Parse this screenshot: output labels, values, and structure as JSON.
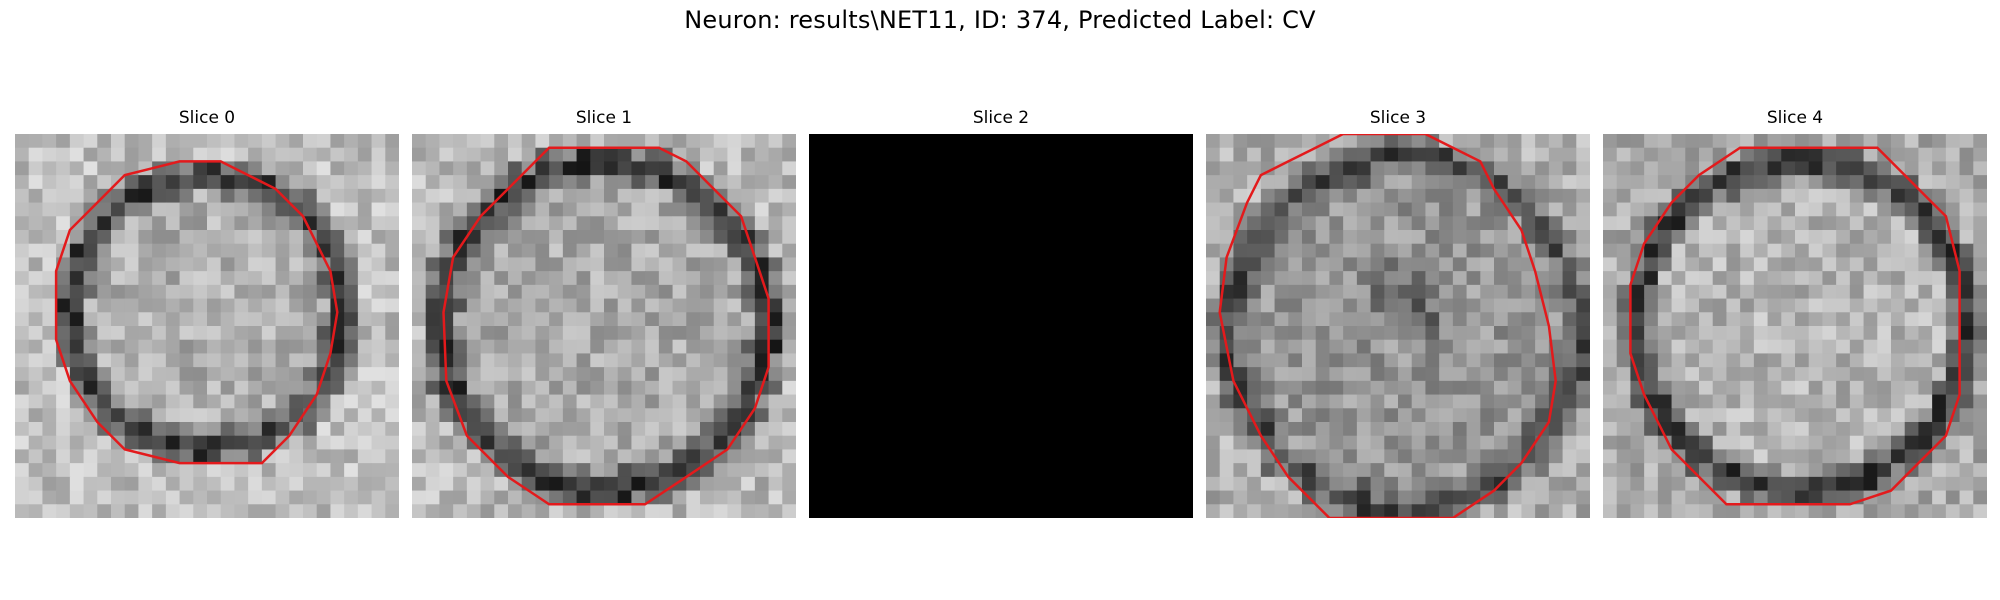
{
  "figure": {
    "suptitle": "Neuron: results\\NET11, ID: 374, Predicted Label: CV"
  },
  "panels": [
    {
      "title": "Slice 0",
      "content": "grayscale-patch",
      "contour_color": "#e31a1c"
    },
    {
      "title": "Slice 1",
      "content": "grayscale-patch",
      "contour_color": "#e31a1c"
    },
    {
      "title": "Slice 2",
      "content": "black-patch"
    },
    {
      "title": "Slice 3",
      "content": "grayscale-patch",
      "contour_color": "#e31a1c"
    },
    {
      "title": "Slice 4",
      "content": "grayscale-patch",
      "contour_color": "#e31a1c"
    }
  ],
  "colors": {
    "contour": "#e31a1c",
    "background": "#ffffff"
  }
}
